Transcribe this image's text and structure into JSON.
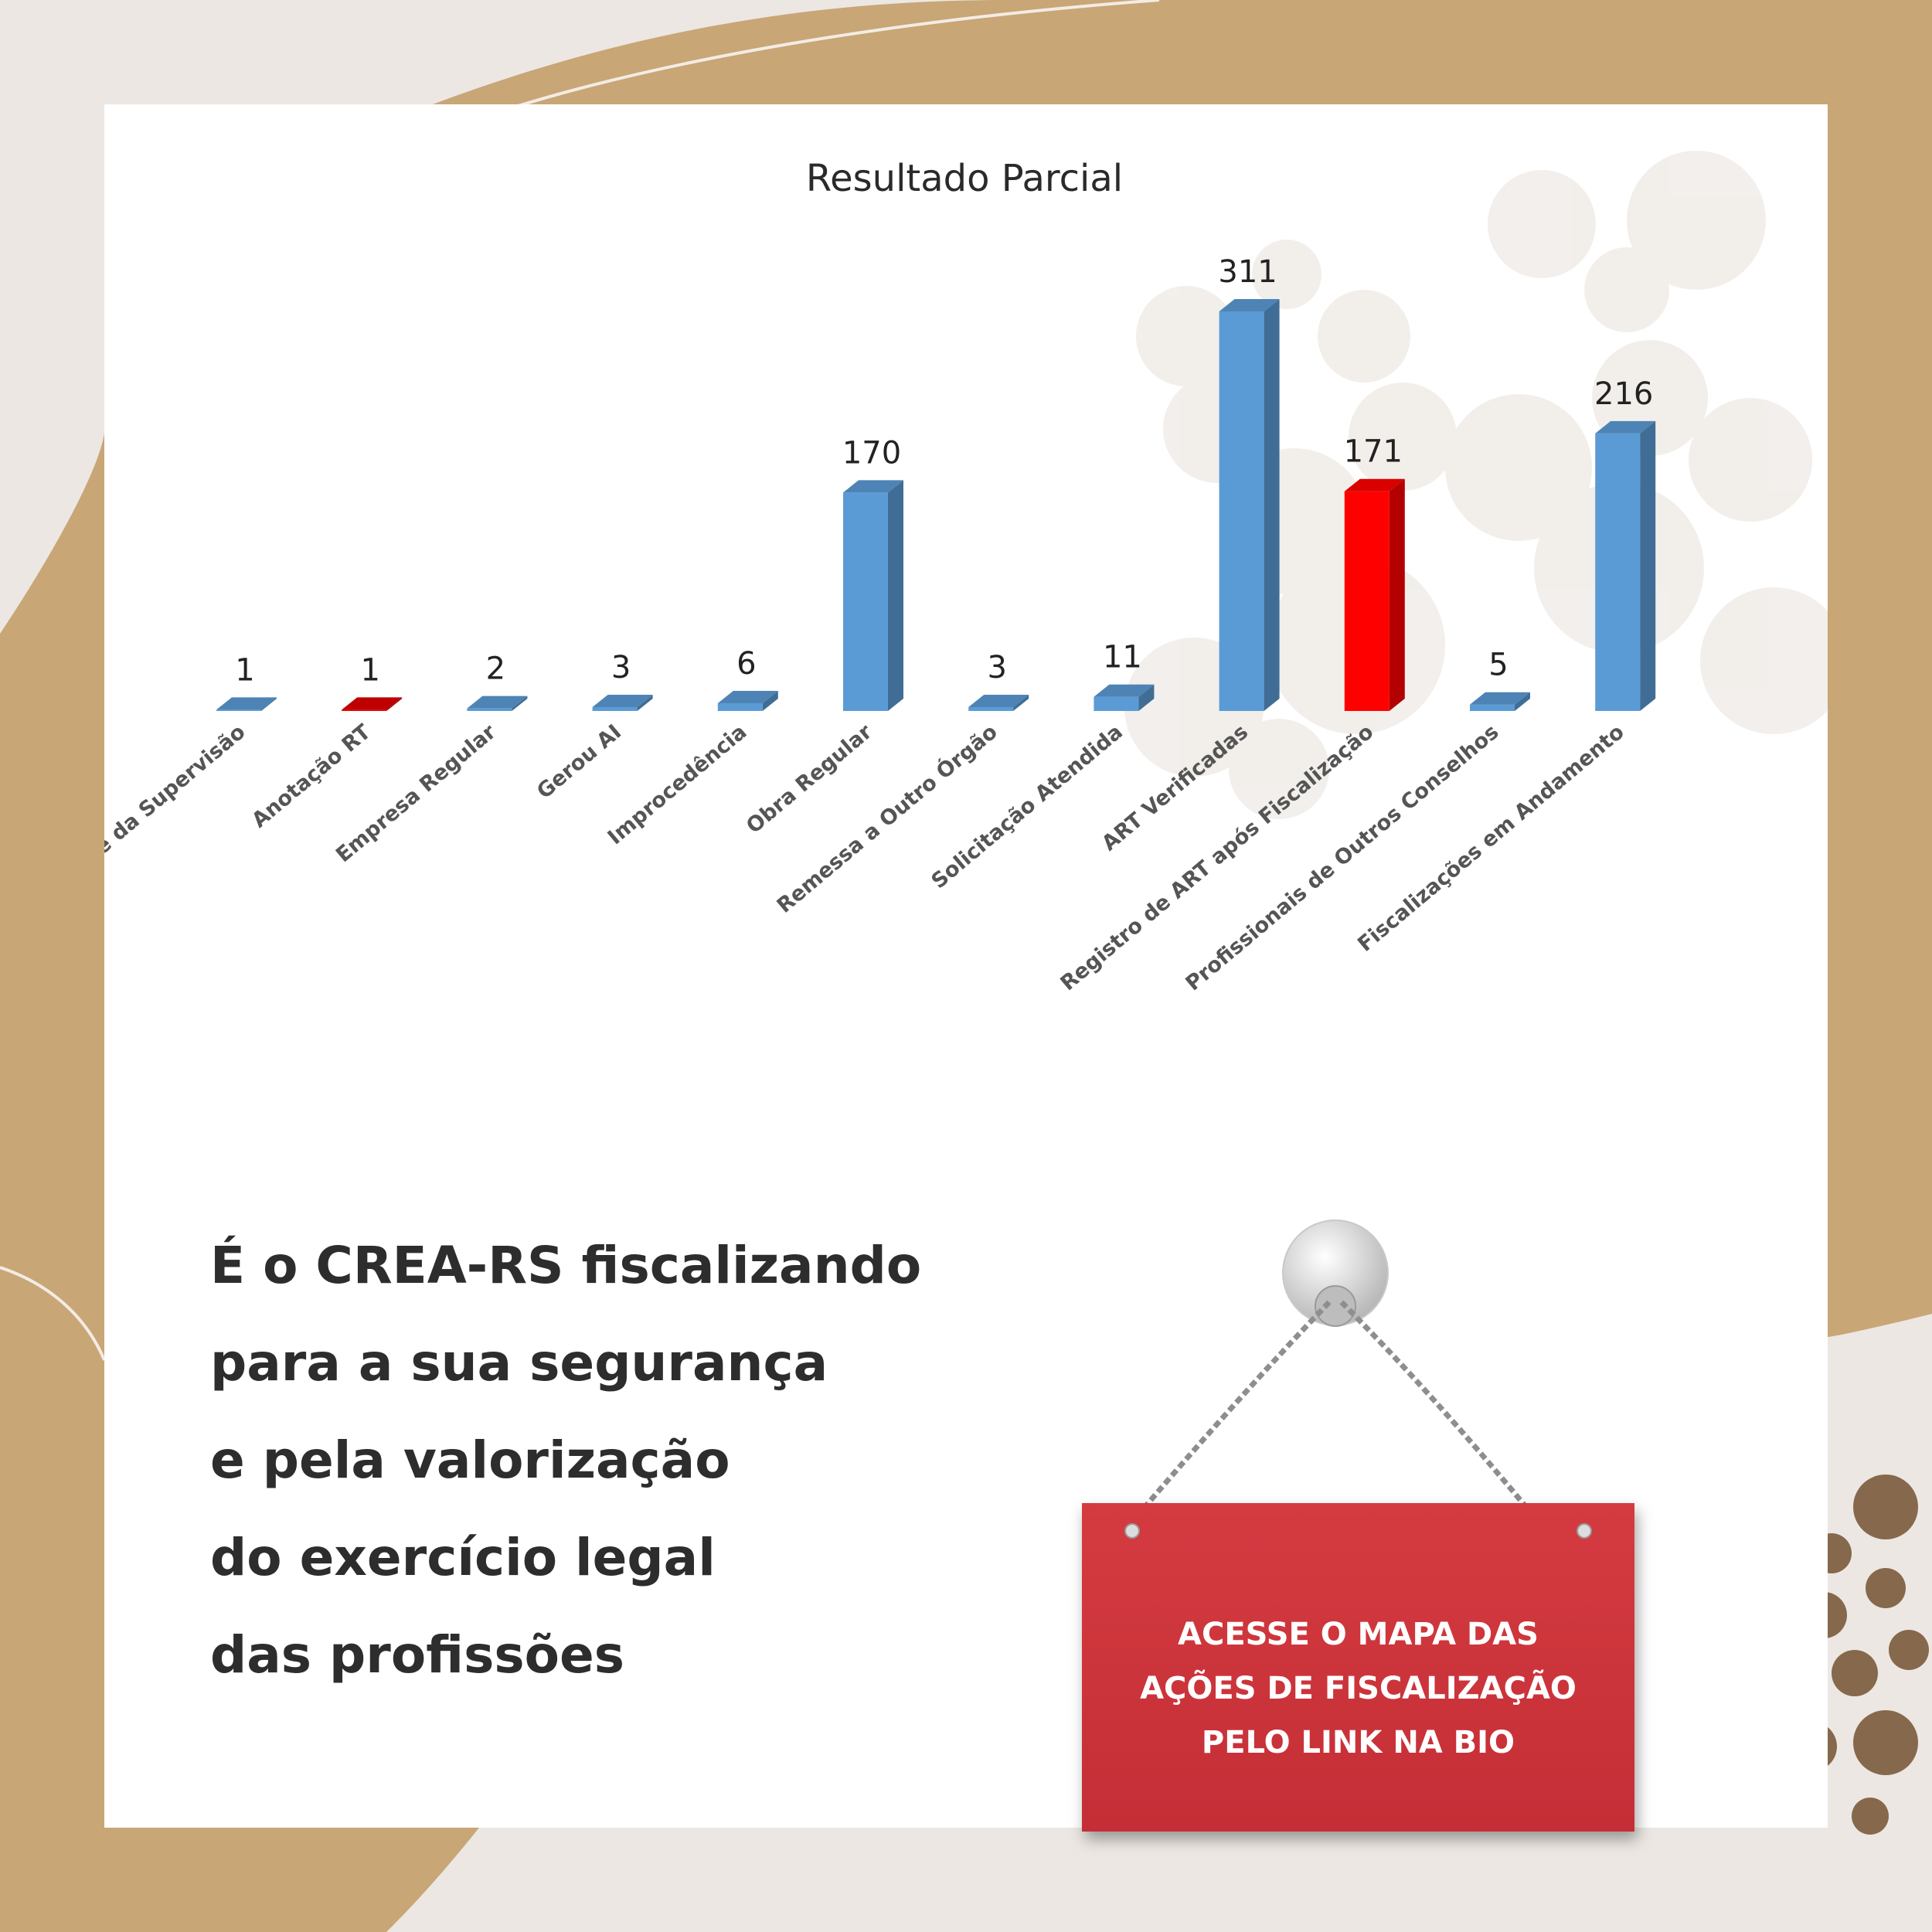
{
  "chart_data": {
    "type": "bar",
    "title": "Resultado Parcial",
    "categories": [
      "Análise da Supervisão",
      "Anotação RT",
      "Empresa Regular",
      "Gerou AI",
      "Improcedência",
      "Obra Regular",
      "Remessa a Outro Órgão",
      "Solicitação Atendida",
      "ART Verificadas",
      "Registro de ART após Fiscalização",
      "Profissionais de Outros Conselhos",
      "Fiscalizações em Andamento"
    ],
    "values": [
      1,
      1,
      2,
      3,
      6,
      170,
      3,
      11,
      311,
      171,
      5,
      216
    ],
    "bar_colors": [
      "#5b9bd5",
      "#e00000",
      "#5b9bd5",
      "#5b9bd5",
      "#5b9bd5",
      "#5b9bd5",
      "#5b9bd5",
      "#5b9bd5",
      "#5b9bd5",
      "#ff0000",
      "#5b9bd5",
      "#5b9bd5"
    ],
    "ylim": [
      0,
      311
    ],
    "grid": false,
    "legend": "none"
  },
  "message": {
    "lines": [
      "É o CREA-RS fiscalizando",
      "para a sua segurança",
      "e pela valorização",
      "do exercício legal",
      "das profissões"
    ]
  },
  "sign": {
    "lines": [
      "ACESSE O MAPA DAS",
      "AÇÕES DE FISCALIZAÇÃO",
      "PELO LINK NA BIO"
    ],
    "color": "#c9303a"
  },
  "colors": {
    "background": "#ece7e3",
    "tan": "#c8a676",
    "dots": "#86684c"
  }
}
